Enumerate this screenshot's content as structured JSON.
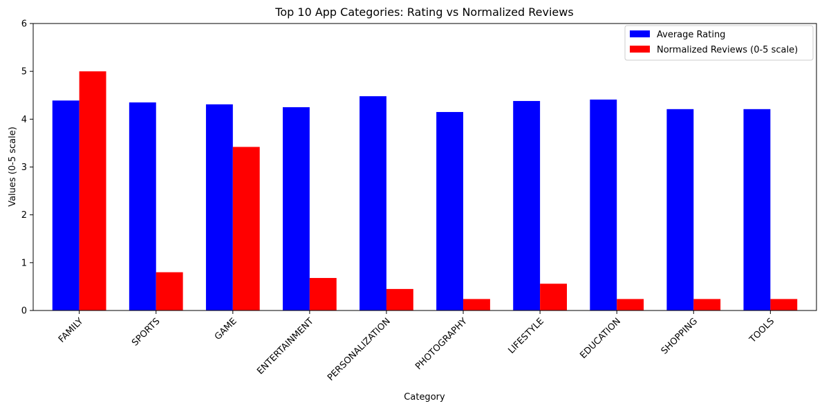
{
  "chart_data": {
    "type": "bar",
    "title": "Top 10 App Categories: Rating vs Normalized Reviews",
    "xlabel": "Category",
    "ylabel": "Values (0-5 scale)",
    "ylim": [
      0,
      6
    ],
    "yticks": [
      0,
      1,
      2,
      3,
      4,
      5,
      6
    ],
    "categories": [
      "FAMILY",
      "SPORTS",
      "GAME",
      "ENTERTAINMENT",
      "PERSONALIZATION",
      "PHOTOGRAPHY",
      "LIFESTYLE",
      "EDUCATION",
      "SHOPPING",
      "TOOLS"
    ],
    "series": [
      {
        "name": "Average Rating",
        "color": "#0000ff",
        "values": [
          4.39,
          4.35,
          4.31,
          4.25,
          4.48,
          4.15,
          4.38,
          4.41,
          4.21,
          4.21
        ]
      },
      {
        "name": "Normalized Reviews (0-5 scale)",
        "color": "#ff0000",
        "values": [
          5.0,
          0.8,
          3.42,
          0.68,
          0.45,
          0.24,
          0.56,
          0.24,
          0.24,
          0.24
        ]
      }
    ],
    "grid": false,
    "legend_position": "top-right"
  }
}
